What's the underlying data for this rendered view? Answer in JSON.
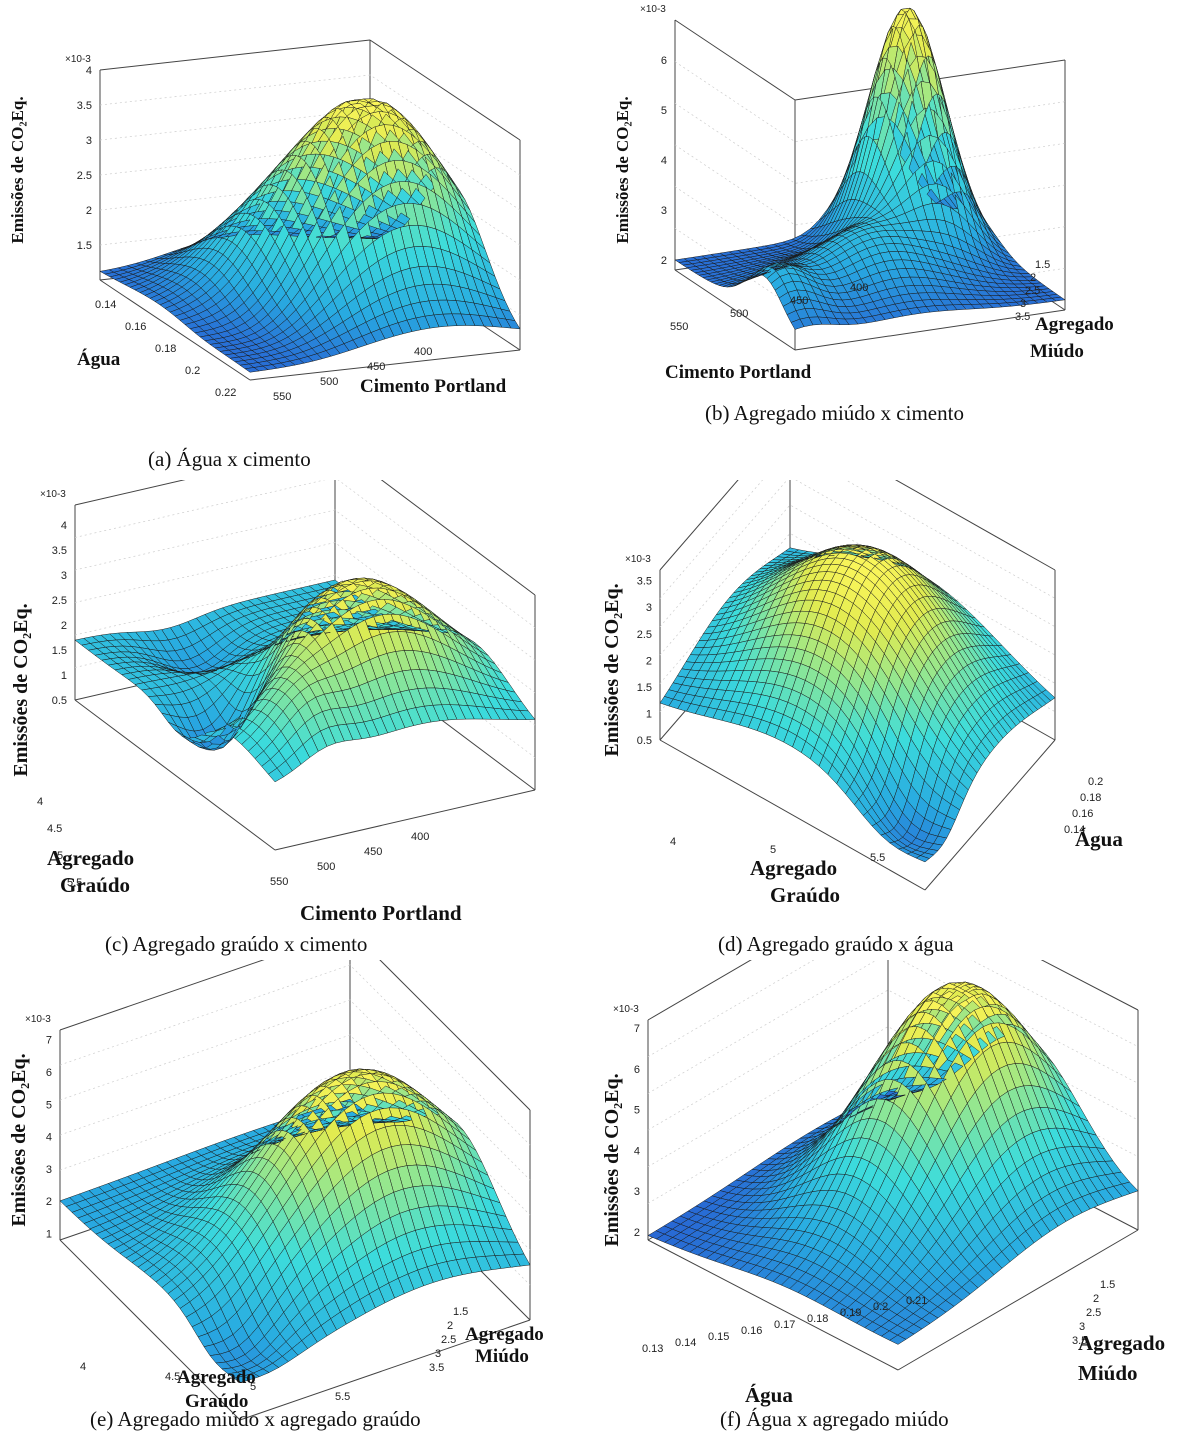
{
  "chart_data": [
    {
      "id": "a",
      "type": "surface",
      "caption": "(a) Água x cimento",
      "zlabel": "Emissões de CO₂Eq.",
      "zexp": "×10-3",
      "zticks": [
        "1.5",
        "2",
        "2.5",
        "3",
        "3.5",
        "4"
      ],
      "zlim": [
        1.0,
        4.0
      ],
      "xlabel": [
        "Água"
      ],
      "xticks": [
        "0.14",
        "0.16",
        "0.18",
        "0.2",
        "0.22"
      ],
      "ylabel": [
        "Cimento Portland"
      ],
      "yticks": [
        "550",
        "500",
        "450",
        "400"
      ],
      "peak": 4.0
    },
    {
      "id": "b",
      "type": "surface",
      "caption": "(b) Agregado miúdo x cimento",
      "zlabel": "Emissões de CO₂Eq.",
      "zexp": "×10-3",
      "zticks": [
        "2",
        "3",
        "4",
        "5",
        "6"
      ],
      "zlim": [
        1.8,
        6.8
      ],
      "xlabel": [
        "Cimento Portland"
      ],
      "xticks": [
        "550",
        "500",
        "450",
        "400"
      ],
      "ylabel": [
        "Agregado",
        "Miúdo"
      ],
      "yticks": [
        "1.5",
        "2",
        "2.5",
        "3",
        "3.5"
      ],
      "peak": 6.8
    },
    {
      "id": "c",
      "type": "surface",
      "caption": "(c) Agregado graúdo x cimento",
      "zlabel": "Emissões de CO₂Eq.",
      "zexp": "×10-3",
      "zticks": [
        "0.5",
        "1",
        "1.5",
        "2",
        "2.5",
        "3",
        "3.5",
        "4"
      ],
      "zlim": [
        0.5,
        4.4
      ],
      "xlabel": [
        "Agregado",
        "Graúdo"
      ],
      "xticks": [
        "4",
        "4.5",
        "5",
        "5.5"
      ],
      "ylabel": [
        "Cimento Portland"
      ],
      "yticks": [
        "550",
        "500",
        "450",
        "400"
      ],
      "peak": 4.3
    },
    {
      "id": "d",
      "type": "surface",
      "caption": "(d) Agregado graúdo x água",
      "zlabel": "Emissões de CO₂Eq.",
      "zexp": "×10-3",
      "zticks": [
        "0.5",
        "1",
        "1.5",
        "2",
        "2.5",
        "3",
        "3.5"
      ],
      "zlim": [
        0.5,
        3.7
      ],
      "xlabel": [
        "Agregado",
        "Graúdo"
      ],
      "xticks": [
        "4",
        "5",
        "5.5"
      ],
      "ylabel": [
        "Água"
      ],
      "yticks": [
        "0.2",
        "0.18",
        "0.16",
        "0.14"
      ],
      "peak": 3.7
    },
    {
      "id": "e",
      "type": "surface",
      "caption": "(e) Agregado miúdo x agregado graúdo",
      "zlabel": "Emissões de CO₂Eq.",
      "zexp": "×10-3",
      "zticks": [
        "1",
        "2",
        "3",
        "4",
        "5",
        "6",
        "7"
      ],
      "zlim": [
        0.8,
        7.3
      ],
      "xlabel": [
        "Agregado",
        "Graúdo"
      ],
      "xticks": [
        "4",
        "4.5",
        "5",
        "5.5"
      ],
      "ylabel": [
        "Agregado",
        "Miúdo"
      ],
      "yticks": [
        "1.5",
        "2",
        "2.5",
        "3",
        "3.5"
      ],
      "peak": 7.3
    },
    {
      "id": "f",
      "type": "surface",
      "caption": "(f) Água x agregado miúdo",
      "zlabel": "Emissões de CO₂Eq.",
      "zexp": "×10-3",
      "zticks": [
        "2",
        "3",
        "4",
        "5",
        "6",
        "7"
      ],
      "zlim": [
        1.8,
        7.2
      ],
      "xlabel": [
        "Água"
      ],
      "xticks": [
        "0.13",
        "0.14",
        "0.15",
        "0.16",
        "0.17",
        "0.18",
        "0.19",
        "0.2",
        "0.21"
      ],
      "ylabel": [
        "Agregado",
        "Miúdo"
      ],
      "yticks": [
        "1.5",
        "2",
        "2.5",
        "3",
        "3.5"
      ],
      "peak": 7.2
    }
  ]
}
